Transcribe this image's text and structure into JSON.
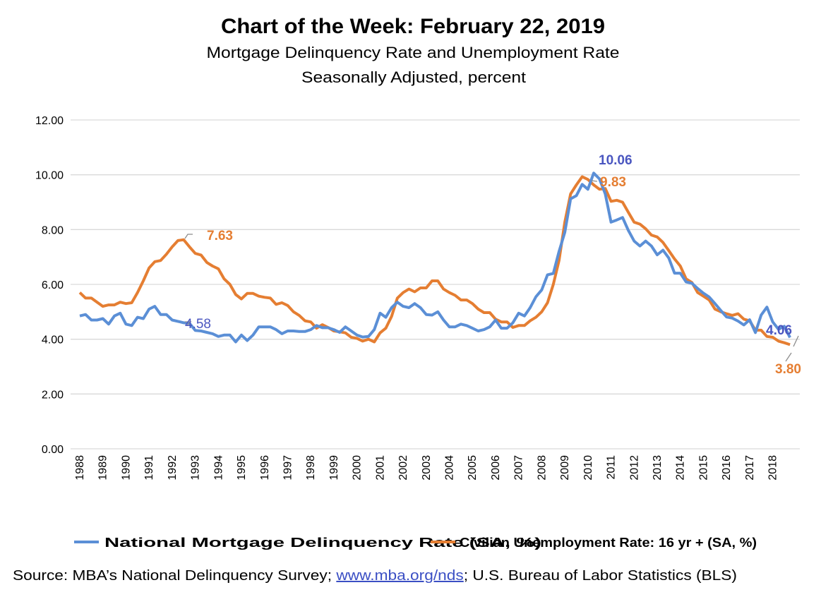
{
  "chart_data": {
    "type": "line",
    "title": "Chart of the Week:  February 22, 2019",
    "subtitle": [
      "Mortgage Delinquency Rate and Unemployment Rate",
      "Seasonally Adjusted, percent"
    ],
    "xlabel": "",
    "ylabel": "",
    "x_start": "1988 Q1",
    "x_frequency": "quarterly",
    "x_tick_labels": [
      "1988",
      "1989",
      "1990",
      "1991",
      "1992",
      "1993",
      "1994",
      "1995",
      "1996",
      "1997",
      "1998",
      "1999",
      "2000",
      "2001",
      "2002",
      "2003",
      "2004",
      "2005",
      "2006",
      "2007",
      "2008",
      "2009",
      "2010",
      "2011",
      "2012",
      "2013",
      "2014",
      "2015",
      "2016",
      "2017",
      "2018"
    ],
    "ylim": [
      0,
      12
    ],
    "y_tick_labels": [
      "0.00",
      "2.00",
      "4.00",
      "6.00",
      "8.00",
      "10.00",
      "12.00"
    ],
    "grid": "horizontal",
    "legend_position": "bottom",
    "series": [
      {
        "name": "National Mortgage Delinquency Rate (SA, %)",
        "color": "#5B8FD6",
        "label_color": "#4A56C0",
        "values": [
          4.85,
          4.9,
          4.7,
          4.7,
          4.75,
          4.55,
          4.85,
          4.95,
          4.55,
          4.5,
          4.8,
          4.75,
          5.1,
          5.2,
          4.9,
          4.9,
          4.7,
          4.65,
          4.6,
          4.58,
          4.32,
          4.3,
          4.25,
          4.2,
          4.1,
          4.15,
          4.15,
          3.9,
          4.15,
          3.95,
          4.15,
          4.45,
          4.45,
          4.45,
          4.35,
          4.2,
          4.3,
          4.3,
          4.28,
          4.28,
          4.35,
          4.5,
          4.42,
          4.42,
          4.35,
          4.25,
          4.45,
          4.3,
          4.15,
          4.08,
          4.1,
          4.35,
          4.95,
          4.8,
          5.15,
          5.35,
          5.2,
          5.15,
          5.3,
          5.15,
          4.9,
          4.88,
          5.0,
          4.7,
          4.45,
          4.45,
          4.55,
          4.5,
          4.4,
          4.3,
          4.35,
          4.45,
          4.7,
          4.4,
          4.4,
          4.6,
          4.95,
          4.85,
          5.15,
          5.55,
          5.8,
          6.35,
          6.4,
          7.2,
          7.9,
          9.12,
          9.24,
          9.65,
          9.47,
          10.06,
          9.85,
          9.3,
          8.27,
          8.35,
          8.44,
          7.97,
          7.58,
          7.4,
          7.58,
          7.4,
          7.08,
          7.25,
          6.96,
          6.41,
          6.41,
          6.09,
          6.04,
          5.85,
          5.68,
          5.54,
          5.3,
          5.05,
          4.81,
          4.77,
          4.66,
          4.52,
          4.71,
          4.24,
          4.88,
          5.17,
          4.63,
          4.36,
          4.47,
          4.06
        ],
        "annotations": [
          {
            "x": "1992 Q4",
            "label": "4.58"
          },
          {
            "x": "2010 Q2",
            "label": "10.06"
          },
          {
            "x": "2018 Q4",
            "label": "4.06"
          }
        ]
      },
      {
        "name": "Civilian Unemployment Rate: 16 yr + (SA, %)",
        "color": "#E57E32",
        "label_color": "#E57E32",
        "values": [
          5.7,
          5.5,
          5.5,
          5.35,
          5.2,
          5.25,
          5.25,
          5.35,
          5.3,
          5.33,
          5.7,
          6.13,
          6.6,
          6.83,
          6.87,
          7.1,
          7.37,
          7.6,
          7.63,
          7.37,
          7.13,
          7.07,
          6.8,
          6.67,
          6.57,
          6.2,
          6.0,
          5.63,
          5.47,
          5.67,
          5.67,
          5.57,
          5.53,
          5.5,
          5.27,
          5.33,
          5.23,
          5.0,
          4.87,
          4.67,
          4.63,
          4.4,
          4.53,
          4.43,
          4.3,
          4.27,
          4.23,
          4.07,
          4.03,
          3.93,
          4.0,
          3.9,
          4.23,
          4.4,
          4.83,
          5.5,
          5.7,
          5.83,
          5.73,
          5.87,
          5.87,
          6.13,
          6.13,
          5.83,
          5.7,
          5.6,
          5.43,
          5.43,
          5.3,
          5.1,
          4.97,
          4.97,
          4.73,
          4.63,
          4.63,
          4.43,
          4.5,
          4.5,
          4.67,
          4.8,
          5.0,
          5.33,
          6.0,
          6.87,
          8.27,
          9.3,
          9.63,
          9.93,
          9.83,
          9.63,
          9.47,
          9.5,
          9.03,
          9.07,
          9.0,
          8.63,
          8.27,
          8.2,
          8.03,
          7.8,
          7.73,
          7.53,
          7.23,
          6.93,
          6.67,
          6.2,
          6.07,
          5.7,
          5.57,
          5.43,
          5.1,
          5.0,
          4.93,
          4.87,
          4.93,
          4.73,
          4.67,
          4.33,
          4.33,
          4.1,
          4.07,
          3.93,
          3.87,
          3.8
        ],
        "annotations": [
          {
            "x": "1992 Q3",
            "label": "7.63"
          },
          {
            "x": "2010 Q1",
            "label": "9.83"
          },
          {
            "x": "2018 Q4",
            "label": "3.80"
          }
        ]
      }
    ]
  },
  "source": {
    "prefix": "Source: MBA’s National Delinquency Survey; ",
    "link": "www.mba.org/nds",
    "suffix": "; U.S. Bureau of Labor Statistics (BLS)"
  }
}
